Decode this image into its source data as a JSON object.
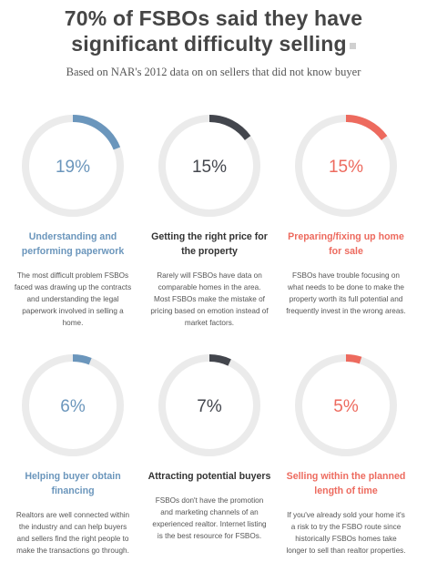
{
  "title_line1": "70% of FSBOs said they have",
  "title_line2": "significant difficulty selling",
  "subtitle": "Based on NAR's 2012 data on on sellers that did not know buyer",
  "chart_data": {
    "type": "donut",
    "title": "70% of FSBOs said they have significant difficulty selling",
    "subtitle": "Based on NAR's 2012 data on on sellers that did not know buyer",
    "items": [
      {
        "value": 19,
        "label": "19%",
        "heading": "Understanding and performing paperwork",
        "description": "The most difficult problem FSBOs faced was drawing up the contracts and understanding the legal paperwork involved in selling a home.",
        "color": "#6b96bc"
      },
      {
        "value": 15,
        "label": "15%",
        "heading": "Getting the right price for the property",
        "description": "Rarely will FSBOs have data on comparable homes in the area. Most FSBOs make the mistake of pricing based on emotion instead of market factors.",
        "color": "#43464d"
      },
      {
        "value": 15,
        "label": "15%",
        "heading": "Preparing/fixing up home for sale",
        "description": "FSBOs have trouble focusing on what needs to be done to make the property worth its full potential and frequently invest in the wrong areas.",
        "color": "#ed6a5e"
      },
      {
        "value": 6,
        "label": "6%",
        "heading": "Helping buyer obtain financing",
        "description": "Realtors are well connected within the industry and can help buyers and sellers find the right people to make the transactions go through.",
        "color": "#6b96bc"
      },
      {
        "value": 7,
        "label": "7%",
        "heading": "Attracting potential buyers",
        "description": "FSBOs don't have the promotion and marketing channels of an experienced realtor. Internet listing is the best resource for FSBOs.",
        "color": "#43464d"
      },
      {
        "value": 5,
        "label": "5%",
        "heading": "Selling within the planned length of time",
        "description": "If you've already sold your home it's a risk to try the FSBO route since historically FSBOs homes take longer to sell than realtor properties.",
        "color": "#ed6a5e"
      }
    ]
  }
}
